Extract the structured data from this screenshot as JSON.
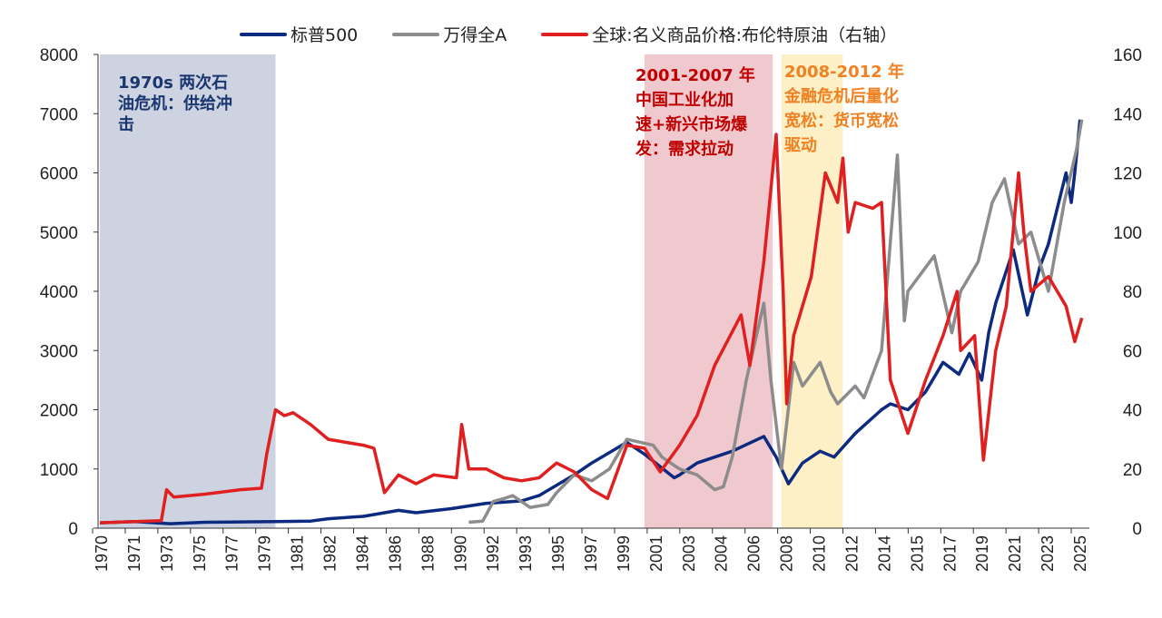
{
  "chart_data": {
    "type": "line",
    "legend_position": "top",
    "grid": false,
    "x_tick_labels": [
      "1970",
      "1971",
      "1973",
      "1975",
      "1977",
      "1979",
      "1981",
      "1982",
      "1984",
      "1986",
      "1988",
      "1990",
      "1992",
      "1993",
      "1995",
      "1997",
      "1999",
      "2001",
      "2003",
      "2004",
      "2006",
      "2008",
      "2010",
      "2012",
      "2014",
      "2015",
      "2017",
      "2019",
      "2021",
      "2023",
      "2025"
    ],
    "x_range": [
      1970,
      2025.9
    ],
    "y_left": {
      "range": [
        0,
        8000
      ],
      "ticks": [
        "0",
        "1000",
        "2000",
        "3000",
        "4000",
        "5000",
        "6000",
        "7000",
        "8000"
      ]
    },
    "y_right": {
      "range": [
        0,
        160
      ],
      "ticks": [
        "0",
        "20",
        "40",
        "60",
        "80",
        "100",
        "120",
        "140",
        "160"
      ]
    },
    "series": [
      {
        "name": "标普500",
        "axis": "left",
        "color": "#0c2a80",
        "points": [
          [
            1970,
            90
          ],
          [
            1972,
            110
          ],
          [
            1974,
            75
          ],
          [
            1976,
            100
          ],
          [
            1980,
            110
          ],
          [
            1982,
            120
          ],
          [
            1983,
            160
          ],
          [
            1985,
            200
          ],
          [
            1987,
            300
          ],
          [
            1988,
            260
          ],
          [
            1990,
            330
          ],
          [
            1992,
            420
          ],
          [
            1994,
            460
          ],
          [
            1995,
            550
          ],
          [
            1997,
            900
          ],
          [
            1998,
            1100
          ],
          [
            2000,
            1450
          ],
          [
            2001,
            1250
          ],
          [
            2002.7,
            850
          ],
          [
            2003,
            900
          ],
          [
            2004,
            1100
          ],
          [
            2006,
            1300
          ],
          [
            2007.8,
            1550
          ],
          [
            2008.5,
            1200
          ],
          [
            2009.2,
            750
          ],
          [
            2010,
            1100
          ],
          [
            2011,
            1300
          ],
          [
            2011.8,
            1200
          ],
          [
            2013,
            1600
          ],
          [
            2014.5,
            2000
          ],
          [
            2015,
            2100
          ],
          [
            2016,
            2000
          ],
          [
            2017,
            2300
          ],
          [
            2018,
            2800
          ],
          [
            2018.9,
            2600
          ],
          [
            2019.5,
            2950
          ],
          [
            2020.2,
            2500
          ],
          [
            2020.6,
            3300
          ],
          [
            2021,
            3800
          ],
          [
            2022,
            4700
          ],
          [
            2022.8,
            3600
          ],
          [
            2023.5,
            4400
          ],
          [
            2024,
            4800
          ],
          [
            2025,
            6000
          ],
          [
            2025.3,
            5500
          ],
          [
            2025.5,
            6000
          ],
          [
            2025.8,
            6900
          ]
        ]
      },
      {
        "name": "万得全A",
        "axis": "left",
        "color": "#8c8c8c",
        "points": [
          [
            1991,
            100
          ],
          [
            1991.8,
            120
          ],
          [
            1992.4,
            450
          ],
          [
            1993,
            500
          ],
          [
            1993.5,
            550
          ],
          [
            1994.5,
            350
          ],
          [
            1995.5,
            400
          ],
          [
            1996,
            600
          ],
          [
            1997,
            900
          ],
          [
            1998,
            800
          ],
          [
            1999,
            1000
          ],
          [
            2000,
            1500
          ],
          [
            2001.5,
            1400
          ],
          [
            2002,
            1200
          ],
          [
            2003,
            1000
          ],
          [
            2004,
            900
          ],
          [
            2005,
            650
          ],
          [
            2005.5,
            700
          ],
          [
            2006,
            1200
          ],
          [
            2006.8,
            2500
          ],
          [
            2007.8,
            3800
          ],
          [
            2008.2,
            2500
          ],
          [
            2008.8,
            1000
          ],
          [
            2009.5,
            2800
          ],
          [
            2010,
            2400
          ],
          [
            2011,
            2800
          ],
          [
            2011.6,
            2300
          ],
          [
            2012,
            2100
          ],
          [
            2013,
            2400
          ],
          [
            2013.5,
            2200
          ],
          [
            2014.5,
            3000
          ],
          [
            2015.4,
            6300
          ],
          [
            2015.8,
            3500
          ],
          [
            2016,
            4000
          ],
          [
            2017.5,
            4600
          ],
          [
            2018.5,
            3300
          ],
          [
            2019,
            4000
          ],
          [
            2020,
            4500
          ],
          [
            2020.8,
            5500
          ],
          [
            2021.5,
            5900
          ],
          [
            2022.3,
            4800
          ],
          [
            2023,
            5000
          ],
          [
            2024,
            4000
          ],
          [
            2024.9,
            5500
          ],
          [
            2025.6,
            6400
          ],
          [
            2025.9,
            6900
          ]
        ]
      },
      {
        "name": "全球:名义商品价格:布伦特原油（右轴）",
        "axis": "right",
        "color": "#e02020",
        "points": [
          [
            1970,
            1.8
          ],
          [
            1973.5,
            2.5
          ],
          [
            1973.8,
            13
          ],
          [
            1974.2,
            10.5
          ],
          [
            1976,
            11.5
          ],
          [
            1978,
            13
          ],
          [
            1979.2,
            13.5
          ],
          [
            1979.5,
            25
          ],
          [
            1980,
            40
          ],
          [
            1980.5,
            38
          ],
          [
            1981,
            39
          ],
          [
            1982,
            35
          ],
          [
            1983,
            30
          ],
          [
            1984,
            29
          ],
          [
            1985,
            28
          ],
          [
            1985.6,
            27
          ],
          [
            1986.2,
            12
          ],
          [
            1987,
            18
          ],
          [
            1988,
            15
          ],
          [
            1989,
            18
          ],
          [
            1990.3,
            17
          ],
          [
            1990.6,
            35
          ],
          [
            1991,
            20
          ],
          [
            1992,
            20
          ],
          [
            1993,
            17
          ],
          [
            1994,
            16
          ],
          [
            1995,
            17
          ],
          [
            1996,
            22
          ],
          [
            1997,
            19
          ],
          [
            1998,
            13
          ],
          [
            1998.9,
            10
          ],
          [
            2000,
            28
          ],
          [
            2001,
            27
          ],
          [
            2001.9,
            19
          ],
          [
            2003,
            28
          ],
          [
            2004,
            38
          ],
          [
            2005,
            55
          ],
          [
            2006.5,
            72
          ],
          [
            2007,
            55
          ],
          [
            2007.8,
            90
          ],
          [
            2008.5,
            133
          ],
          [
            2008.9,
            80
          ],
          [
            2009.1,
            42
          ],
          [
            2009.5,
            65
          ],
          [
            2010,
            75
          ],
          [
            2010.5,
            85
          ],
          [
            2011.3,
            120
          ],
          [
            2012,
            110
          ],
          [
            2012.3,
            125
          ],
          [
            2012.6,
            100
          ],
          [
            2013,
            110
          ],
          [
            2014,
            108
          ],
          [
            2014.5,
            110
          ],
          [
            2015,
            50
          ],
          [
            2016,
            32
          ],
          [
            2017,
            50
          ],
          [
            2018,
            65
          ],
          [
            2018.8,
            80
          ],
          [
            2019,
            60
          ],
          [
            2019.8,
            65
          ],
          [
            2020.3,
            23
          ],
          [
            2021,
            60
          ],
          [
            2021.6,
            75
          ],
          [
            2022.3,
            120
          ],
          [
            2022.6,
            100
          ],
          [
            2023,
            80
          ],
          [
            2024,
            85
          ],
          [
            2024.5,
            80
          ],
          [
            2025,
            75
          ],
          [
            2025.5,
            63
          ],
          [
            2025.9,
            71
          ]
        ]
      }
    ],
    "shaded_periods": [
      {
        "from": 1970,
        "to": 1980,
        "color": "#cdd3e0",
        "label": "1970s 两次石油危机：供给冲击",
        "label_color": "#1a3670"
      },
      {
        "from": 2001,
        "to": 2008.3,
        "color": "#efc9cd",
        "label": "2001-2007 年中国工业化加速+新兴市场爆发：需求拉动",
        "label_color": "#c00000"
      },
      {
        "from": 2008.8,
        "to": 2012.3,
        "color": "#fdefc6",
        "label": "2008-2012 年金融危机后量化宽松：货币宽松驱动",
        "label_color": "#f08020"
      }
    ]
  },
  "annotations": {
    "a1_line1": "1970s  两次石",
    "a1_line2": "油危机：供给冲",
    "a1_line3": "击",
    "a2_line1": "2001-2007  年",
    "a2_line2": "中国工业化加",
    "a2_line3": "速+新兴市场爆",
    "a2_line4": "发：需求拉动",
    "a3_line1": "2008-2012   年",
    "a3_line2": "金融危机后量化",
    "a3_line3": "宽松：货币宽松",
    "a3_line4": "驱动"
  }
}
